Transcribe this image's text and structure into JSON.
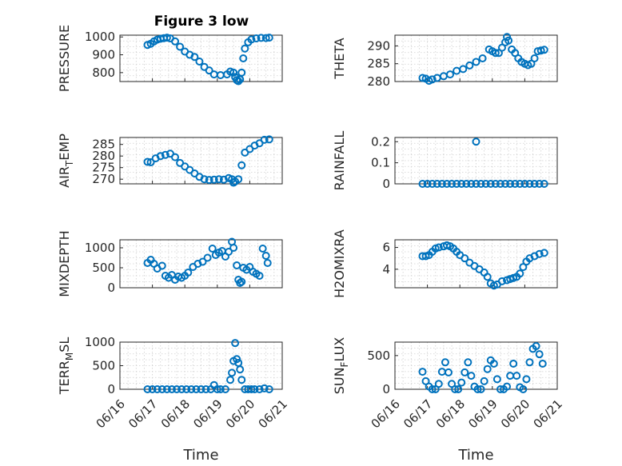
{
  "figure_title": "Figure 3 low",
  "marker_color": "#0072BD",
  "x_tick_labels": [
    "06/16",
    "06/17",
    "06/18",
    "06/19",
    "06/20",
    "06/21"
  ],
  "chart_data": [
    {
      "type": "scatter",
      "title": "Figure 3 low",
      "ylabel": "PRESSURE",
      "xlabel": "",
      "xlim": [
        0,
        5
      ],
      "ylim": [
        750,
        1010
      ],
      "yticks": [
        800,
        900,
        1000
      ],
      "series": [
        {
          "x": [
            0.85,
            0.95,
            1.05,
            1.15,
            1.25,
            1.35,
            1.45,
            1.55,
            1.7,
            1.85,
            2.0,
            2.15,
            2.3,
            2.45,
            2.6,
            2.75,
            2.9,
            3.1,
            3.3,
            3.4,
            3.5,
            3.55,
            3.6,
            3.65,
            3.7,
            3.75,
            3.8,
            3.85,
            3.95,
            4.05,
            4.2,
            4.35,
            4.5,
            4.6
          ],
          "y": [
            955,
            962,
            975,
            985,
            990,
            993,
            996,
            992,
            975,
            945,
            918,
            900,
            888,
            862,
            832,
            812,
            790,
            786,
            790,
            806,
            800,
            775,
            758,
            752,
            762,
            800,
            880,
            935,
            970,
            986,
            992,
            995,
            994,
            996
          ]
        }
      ]
    },
    {
      "type": "scatter",
      "title": "",
      "ylabel": "THETA",
      "xlabel": "",
      "xlim": [
        0,
        5
      ],
      "ylim": [
        280,
        293
      ],
      "yticks": [
        280,
        285,
        290
      ],
      "series": [
        {
          "x": [
            0.85,
            0.95,
            1.05,
            1.15,
            1.3,
            1.5,
            1.7,
            1.9,
            2.1,
            2.3,
            2.5,
            2.7,
            2.9,
            3.0,
            3.1,
            3.2,
            3.3,
            3.4,
            3.45,
            3.5,
            3.6,
            3.7,
            3.8,
            3.9,
            4.0,
            4.1,
            4.2,
            4.3,
            4.4,
            4.5,
            4.6
          ],
          "y": [
            281,
            280.8,
            280.2,
            280.6,
            281,
            281.5,
            282,
            283,
            283.5,
            284.5,
            285.5,
            286.5,
            289,
            288.5,
            288,
            288,
            289.5,
            291,
            292.5,
            291.5,
            289,
            288,
            286.5,
            285.5,
            285,
            284.6,
            285,
            286.5,
            288.5,
            288.7,
            288.9
          ]
        }
      ]
    },
    {
      "type": "scatter",
      "title": "",
      "ylabel": "AIR_TEMP",
      "xlabel": "",
      "xlim": [
        0,
        5
      ],
      "ylim": [
        268,
        288
      ],
      "yticks": [
        270,
        275,
        280,
        285
      ],
      "series": [
        {
          "x": [
            0.85,
            0.95,
            1.1,
            1.25,
            1.4,
            1.55,
            1.7,
            1.85,
            2.0,
            2.15,
            2.3,
            2.45,
            2.6,
            2.75,
            2.9,
            3.05,
            3.2,
            3.35,
            3.45,
            3.5,
            3.55,
            3.65,
            3.75,
            3.85,
            4.0,
            4.15,
            4.3,
            4.45,
            4.6
          ],
          "y": [
            277.5,
            277.3,
            279,
            280,
            280.5,
            281,
            279.5,
            277,
            275.5,
            274,
            272.5,
            271,
            270,
            269.7,
            269.8,
            270,
            269.8,
            270.5,
            270,
            268.5,
            269,
            270,
            276,
            281.5,
            283,
            284.5,
            285.5,
            287,
            287.2
          ]
        }
      ]
    },
    {
      "type": "scatter",
      "title": "",
      "ylabel": "RAINFALL",
      "xlabel": "",
      "xlim": [
        0,
        5
      ],
      "ylim": [
        0,
        0.22
      ],
      "yticks": [
        0,
        0.1,
        0.2
      ],
      "series": [
        {
          "x": [
            0.85,
            1.0,
            1.15,
            1.3,
            1.45,
            1.6,
            1.75,
            1.9,
            2.05,
            2.2,
            2.35,
            2.5,
            2.65,
            2.8,
            2.95,
            3.1,
            3.25,
            3.4,
            3.55,
            3.7,
            3.85,
            4.0,
            4.15,
            4.3,
            4.45,
            4.6,
            2.5
          ],
          "y": [
            0,
            0,
            0,
            0,
            0,
            0,
            0,
            0,
            0,
            0,
            0,
            0,
            0,
            0,
            0,
            0,
            0,
            0,
            0,
            0,
            0,
            0,
            0,
            0,
            0,
            0,
            0.2
          ]
        }
      ]
    },
    {
      "type": "scatter",
      "title": "",
      "ylabel": "MIXDEPTH",
      "xlabel": "",
      "xlim": [
        0,
        5
      ],
      "ylim": [
        0,
        1200
      ],
      "yticks": [
        0,
        500,
        1000
      ],
      "series": [
        {
          "x": [
            0.85,
            0.95,
            1.05,
            1.15,
            1.3,
            1.4,
            1.5,
            1.6,
            1.7,
            1.8,
            1.9,
            2.0,
            2.1,
            2.25,
            2.4,
            2.55,
            2.7,
            2.85,
            2.95,
            3.05,
            3.15,
            3.25,
            3.35,
            3.45,
            3.5,
            3.6,
            3.65,
            3.7,
            3.75,
            3.8,
            3.9,
            4.0,
            4.1,
            4.2,
            4.3,
            4.4,
            4.5,
            4.55
          ],
          "y": [
            620,
            700,
            600,
            480,
            550,
            300,
            250,
            320,
            200,
            280,
            250,
            300,
            380,
            520,
            600,
            650,
            750,
            980,
            820,
            880,
            920,
            780,
            900,
            1150,
            1000,
            560,
            200,
            120,
            150,
            500,
            450,
            520,
            400,
            350,
            300,
            980,
            800,
            620
          ]
        }
      ]
    },
    {
      "type": "scatter",
      "title": "",
      "ylabel": "H2OMIXRA",
      "xlabel": "",
      "xlim": [
        0,
        5
      ],
      "ylim": [
        2.3,
        6.7
      ],
      "yticks": [
        4,
        6
      ],
      "series": [
        {
          "x": [
            0.85,
            0.95,
            1.05,
            1.15,
            1.25,
            1.35,
            1.5,
            1.6,
            1.7,
            1.8,
            1.9,
            2.0,
            2.15,
            2.3,
            2.45,
            2.6,
            2.75,
            2.85,
            2.95,
            3.05,
            3.15,
            3.3,
            3.45,
            3.55,
            3.65,
            3.75,
            3.85,
            3.95,
            4.05,
            4.15,
            4.3,
            4.45,
            4.6
          ],
          "y": [
            5.2,
            5.2,
            5.3,
            5.6,
            5.9,
            6.0,
            6.1,
            6.2,
            6.1,
            5.9,
            5.6,
            5.3,
            5.0,
            4.6,
            4.3,
            4.0,
            3.7,
            3.3,
            2.7,
            2.5,
            2.6,
            2.9,
            3.0,
            3.1,
            3.2,
            3.3,
            3.6,
            4.2,
            4.7,
            5.0,
            5.2,
            5.4,
            5.5
          ]
        }
      ]
    },
    {
      "type": "scatter",
      "title": "",
      "ylabel": "TERR_MSL",
      "xlabel": "Time",
      "xlim": [
        0,
        5
      ],
      "ylim": [
        0,
        1000
      ],
      "yticks": [
        0,
        500,
        1000
      ],
      "series": [
        {
          "x": [
            0.85,
            1.0,
            1.15,
            1.3,
            1.45,
            1.6,
            1.75,
            1.9,
            2.05,
            2.2,
            2.35,
            2.5,
            2.65,
            2.8,
            2.9,
            3.0,
            3.1,
            3.25,
            3.4,
            3.45,
            3.5,
            3.55,
            3.6,
            3.65,
            3.7,
            3.75,
            3.85,
            3.95,
            4.05,
            4.15,
            4.3,
            4.45,
            4.6
          ],
          "y": [
            0,
            0,
            0,
            0,
            0,
            0,
            0,
            0,
            0,
            0,
            0,
            0,
            0,
            0,
            90,
            0,
            0,
            0,
            200,
            350,
            600,
            980,
            640,
            560,
            420,
            200,
            0,
            0,
            0,
            0,
            0,
            20,
            0
          ]
        }
      ]
    },
    {
      "type": "scatter",
      "title": "",
      "ylabel": "SUN_FLUX",
      "xlabel": "Time",
      "xlim": [
        0,
        5
      ],
      "ylim": [
        0,
        700
      ],
      "yticks": [
        0,
        500
      ],
      "series": [
        {
          "x": [
            0.85,
            0.95,
            1.05,
            1.15,
            1.25,
            1.35,
            1.45,
            1.55,
            1.65,
            1.75,
            1.85,
            1.95,
            2.05,
            2.15,
            2.25,
            2.35,
            2.45,
            2.55,
            2.65,
            2.75,
            2.85,
            2.95,
            3.05,
            3.15,
            3.25,
            3.35,
            3.45,
            3.55,
            3.65,
            3.75,
            3.85,
            3.95,
            4.05,
            4.15,
            4.25,
            4.35,
            4.45,
            4.55
          ],
          "y": [
            260,
            120,
            40,
            0,
            0,
            80,
            260,
            400,
            250,
            80,
            0,
            0,
            100,
            250,
            400,
            200,
            40,
            0,
            0,
            120,
            300,
            430,
            380,
            150,
            0,
            0,
            40,
            200,
            380,
            200,
            30,
            0,
            150,
            400,
            600,
            640,
            520,
            380
          ]
        }
      ]
    }
  ]
}
